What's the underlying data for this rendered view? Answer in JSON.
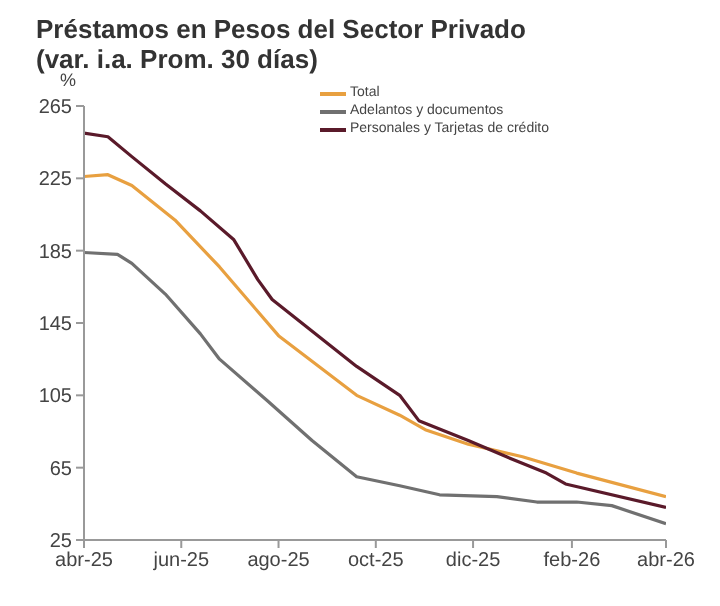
{
  "chart_data": {
    "type": "line",
    "title": "Préstamos en Pesos del Sector Privado",
    "subtitle": "(var. i.a. Prom. 30 días)",
    "ylabel": "%",
    "xlim": [
      "2025-04-01",
      "2026-04-01"
    ],
    "xticks": [
      {
        "value": "2025-04-01",
        "label": "abr-25"
      },
      {
        "value": "2025-06-01",
        "label": "jun-25"
      },
      {
        "value": "2025-08-01",
        "label": "ago-25"
      },
      {
        "value": "2025-10-01",
        "label": "oct-25"
      },
      {
        "value": "2025-12-01",
        "label": "dic-25"
      },
      {
        "value": "2026-02-01",
        "label": "feb-26"
      },
      {
        "value": "2026-04-01",
        "label": "abr-26"
      }
    ],
    "ylim": [
      25,
      265
    ],
    "yticks": [
      25,
      65,
      105,
      145,
      185,
      225,
      265
    ],
    "grid": false,
    "legend": "top right",
    "marker": "none",
    "line_style": "solid",
    "series": [
      {
        "name": "Total",
        "color": "#e8a040",
        "x": [
          "2025-04-01",
          "2025-04-16",
          "2025-05-01",
          "2025-05-28",
          "2025-06-25",
          "2025-08-01",
          "2025-09-19",
          "2025-10-16",
          "2025-11-01",
          "2025-11-28",
          "2026-01-01",
          "2026-02-04",
          "2026-04-01"
        ],
        "values": [
          226,
          227,
          221,
          202,
          176,
          138,
          105,
          94,
          86,
          78,
          71,
          62,
          49
        ]
      },
      {
        "name": "Adelantos y documentos",
        "color": "#707070",
        "x": [
          "2025-04-01",
          "2025-04-22",
          "2025-05-01",
          "2025-05-22",
          "2025-06-13",
          "2025-06-25",
          "2025-07-25",
          "2025-08-22",
          "2025-09-19",
          "2025-10-16",
          "2025-11-10",
          "2025-12-16",
          "2026-01-10",
          "2026-02-04",
          "2026-02-26",
          "2026-04-01"
        ],
        "values": [
          184,
          183,
          178,
          161,
          139,
          125,
          102,
          80,
          60,
          55,
          50,
          49,
          46,
          46,
          44,
          34
        ]
      },
      {
        "name": "Personales y Tarjetas de crédito",
        "color": "#5a1a2a",
        "x": [
          "2025-04-01",
          "2025-04-16",
          "2025-05-01",
          "2025-05-22",
          "2025-06-13",
          "2025-07-04",
          "2025-07-19",
          "2025-07-28",
          "2025-09-19",
          "2025-10-16",
          "2025-10-28",
          "2025-11-28",
          "2025-12-22",
          "2026-01-16",
          "2026-01-28",
          "2026-04-01"
        ],
        "values": [
          250,
          248,
          237,
          222,
          207,
          191,
          169,
          158,
          121,
          105,
          91,
          80,
          71,
          62,
          56,
          43
        ]
      }
    ]
  }
}
